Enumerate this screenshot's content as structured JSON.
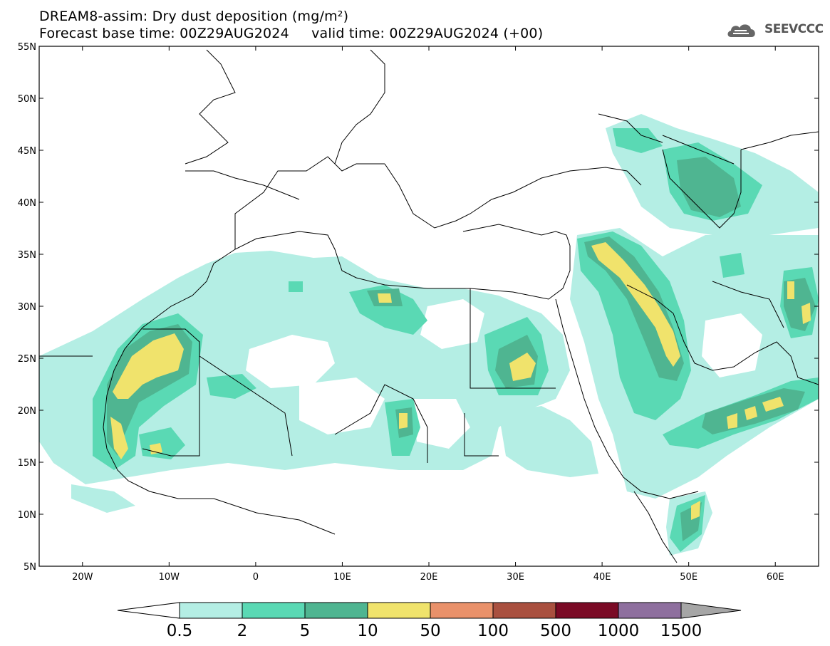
{
  "title": {
    "line1": "DREAM8-assim: Dry dust deposition (mg/m²)",
    "line2": "Forecast base time: 00Z29AUG2024     valid time: 00Z29AUG2024 (+00)"
  },
  "logo": {
    "text": "SEEVCCC",
    "icon": "cloud-icon"
  },
  "map": {
    "lon_range": [
      -25,
      65
    ],
    "lat_range": [
      5,
      55
    ],
    "lat_ticks": [
      "5N",
      "10N",
      "15N",
      "20N",
      "25N",
      "30N",
      "35N",
      "40N",
      "45N",
      "50N",
      "55N"
    ],
    "lon_ticks": [
      "20W",
      "10W",
      "0",
      "10E",
      "20E",
      "30E",
      "40E",
      "50E",
      "60E"
    ]
  },
  "colorbar": {
    "labels": [
      "0.5",
      "2",
      "5",
      "10",
      "50",
      "100",
      "500",
      "1000",
      "1500"
    ],
    "colors": [
      "#b4eee4",
      "#5ad9b4",
      "#4fb591",
      "#f0e36c",
      "#e9916a",
      "#a9503f",
      "#7a0a25",
      "#8e6f9e"
    ],
    "under_color": "#ffffff",
    "over_color": "#a6a6a6"
  }
}
